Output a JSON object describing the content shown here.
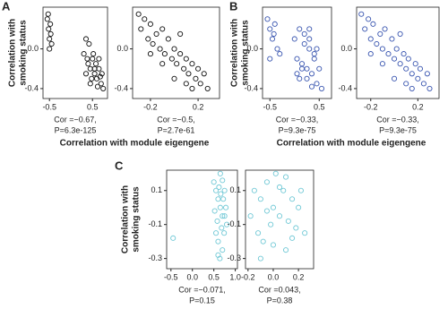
{
  "panel_labels": [
    "A",
    "B",
    "C"
  ],
  "chart_data": [
    {
      "type": "scatter",
      "color": "#111111",
      "y_label": [
        "Correlation with",
        "smoking status"
      ],
      "x_label": "Correlation with module eigengene",
      "annotation": [
        "Cor =−0.67,",
        "P=6.3e-125"
      ],
      "xlim": [
        -0.65,
        0.85
      ],
      "ylim": [
        -0.5,
        0.42
      ],
      "xticks": [
        -0.5,
        0.5
      ],
      "yticks": [
        -0.4,
        {
          "value": 0,
          "label": "0.0"
        }
      ],
      "x": [
        -0.55,
        -0.52,
        -0.5,
        -0.48,
        -0.45,
        -0.53,
        -0.47,
        -0.5,
        0.3,
        0.35,
        0.4,
        0.45,
        0.5,
        0.55,
        0.6,
        0.65,
        0.7,
        0.75,
        0.38,
        0.48,
        0.58,
        0.68,
        0.42,
        0.52,
        0.62,
        0.72,
        0.45,
        0.55,
        0.65,
        0.35
      ],
      "y": [
        0.3,
        0.2,
        0.1,
        0.25,
        0.05,
        0.35,
        0.15,
        0.0,
        -0.05,
        0.1,
        -0.15,
        -0.2,
        -0.1,
        -0.25,
        -0.3,
        -0.2,
        -0.35,
        -0.4,
        -0.1,
        -0.3,
        -0.15,
        -0.28,
        0.05,
        -0.05,
        -0.38,
        -0.25,
        -0.35,
        -0.2,
        -0.1,
        -0.25
      ]
    },
    {
      "type": "scatter",
      "color": "#111111",
      "annotation": [
        "Cor =−0.5,",
        "P=2.7e-61"
      ],
      "xlim": [
        -0.35,
        0.38
      ],
      "ylim": [
        -0.5,
        0.42
      ],
      "xticks": [
        -0.2,
        0.2
      ],
      "yticks": [
        -0.4,
        {
          "value": 0,
          "label": "0.0"
        }
      ],
      "x": [
        -0.3,
        -0.28,
        -0.25,
        -0.22,
        -0.2,
        -0.18,
        -0.15,
        -0.12,
        -0.1,
        -0.08,
        -0.05,
        -0.02,
        0,
        0.02,
        0.05,
        0.08,
        0.1,
        0.12,
        0.15,
        0.18,
        0.2,
        0.22,
        0.25,
        0.28,
        -0.1,
        0.0,
        0.1,
        0.15,
        -0.2,
        0.05
      ],
      "y": [
        0.35,
        0.2,
        0.3,
        0.1,
        0.25,
        0.05,
        0.15,
        0.0,
        0.2,
        -0.05,
        0.1,
        -0.1,
        0.0,
        -0.15,
        -0.05,
        -0.2,
        -0.1,
        -0.25,
        -0.15,
        -0.3,
        -0.2,
        -0.35,
        -0.25,
        -0.4,
        -0.15,
        -0.3,
        -0.35,
        -0.4,
        -0.05,
        0.15
      ]
    },
    {
      "type": "scatter",
      "color": "#3a56b0",
      "y_label": [
        "Correlation with",
        "smoking status"
      ],
      "x_label": "Correlation with module eigengene",
      "annotation": [
        "Cor =−0.33,",
        "P=9.3e-75"
      ],
      "xlim": [
        -0.65,
        0.75
      ],
      "ylim": [
        -0.5,
        0.42
      ],
      "xticks": [
        -0.5,
        0.5
      ],
      "yticks": [
        -0.4,
        {
          "value": 0,
          "label": "0.0"
        }
      ],
      "x": [
        -0.55,
        -0.5,
        -0.45,
        -0.4,
        -0.35,
        -0.5,
        -0.42,
        -0.3,
        0.0,
        0.05,
        0.1,
        0.15,
        0.2,
        0.25,
        0.3,
        0.35,
        0.4,
        0.45,
        0.5,
        0.55,
        0.1,
        0.2,
        0.3,
        0.4,
        0.15,
        0.25,
        0.35,
        0.45,
        0.05,
        0.3
      ],
      "y": [
        0.3,
        0.2,
        0.1,
        0.25,
        0.0,
        -0.1,
        0.15,
        -0.05,
        0.1,
        -0.1,
        0.2,
        -0.2,
        0.05,
        -0.3,
        0.0,
        -0.25,
        -0.1,
        -0.35,
        -0.2,
        -0.4,
        -0.3,
        0.15,
        0.1,
        -0.05,
        -0.15,
        -0.2,
        -0.38,
        0.0,
        -0.25,
        0.2
      ]
    },
    {
      "type": "scatter",
      "color": "#3a56b0",
      "annotation": [
        "Cor =−0.33,",
        "P=9.3e-75"
      ],
      "xlim": [
        -0.32,
        0.38
      ],
      "ylim": [
        -0.5,
        0.42
      ],
      "xticks": [
        -0.2,
        0.2
      ],
      "yticks": [
        -0.4,
        {
          "value": 0,
          "label": "0.0"
        }
      ],
      "x": [
        -0.28,
        -0.25,
        -0.22,
        -0.2,
        -0.18,
        -0.15,
        -0.12,
        -0.1,
        -0.08,
        -0.05,
        -0.02,
        0,
        0.02,
        0.05,
        0.08,
        0.1,
        0.12,
        0.15,
        0.18,
        0.2,
        0.22,
        0.25,
        0.28,
        0.3,
        -0.1,
        0.0,
        0.1,
        0.15,
        -0.2,
        0.05
      ],
      "y": [
        0.35,
        0.2,
        0.3,
        0.1,
        0.25,
        0.05,
        0.15,
        0.0,
        0.2,
        -0.05,
        0.1,
        -0.1,
        0.0,
        -0.15,
        -0.05,
        -0.2,
        -0.1,
        -0.25,
        -0.15,
        -0.3,
        -0.2,
        -0.35,
        -0.25,
        -0.4,
        -0.15,
        -0.3,
        -0.35,
        -0.4,
        -0.05,
        0.15
      ]
    },
    {
      "type": "scatter",
      "color": "#72c9d6",
      "y_label": [
        "Correlation with",
        "smoking status"
      ],
      "x_label": "Correlation with module eigengene",
      "annotation": [
        "Cor =−0.071,",
        "P=0.15"
      ],
      "xlim": [
        -0.6,
        1.05
      ],
      "ylim": [
        -0.36,
        0.22
      ],
      "xticks": [
        -0.5,
        {
          "value": 0,
          "label": "0.0"
        },
        0.5,
        {
          "value": 1,
          "label": "1.0"
        }
      ],
      "yticks": [
        0.1,
        -0.1,
        -0.3
      ],
      "x": [
        0.5,
        0.55,
        0.6,
        0.65,
        0.7,
        0.75,
        0.8,
        0.55,
        0.6,
        0.65,
        0.7,
        0.75,
        0.58,
        0.62,
        0.68,
        0.72,
        0.78,
        0.52,
        0.64,
        0.7,
        -0.45,
        0.6,
        0.66,
        0.74
      ],
      "y": [
        0.15,
        0.1,
        0.05,
        0.2,
        -0.05,
        0.1,
        -0.1,
        -0.15,
        -0.2,
        0.0,
        -0.25,
        -0.05,
        -0.08,
        0.12,
        -0.12,
        0.05,
        0.0,
        -0.02,
        -0.3,
        0.16,
        -0.18,
        -0.28,
        0.08,
        -0.15
      ]
    },
    {
      "type": "scatter",
      "color": "#72c9d6",
      "annotation": [
        "Cor =0.043,",
        "P=0.38"
      ],
      "xlim": [
        -0.22,
        0.32
      ],
      "ylim": [
        -0.36,
        0.22
      ],
      "xticks": [
        -0.2,
        {
          "value": 0,
          "label": "0.0"
        },
        0.2
      ],
      "yticks": [
        0.1,
        -0.1,
        -0.3
      ],
      "x": [
        -0.18,
        -0.15,
        -0.12,
        -0.1,
        -0.08,
        -0.05,
        -0.02,
        0,
        0.02,
        0.05,
        0.08,
        0.1,
        0.12,
        0.15,
        0.18,
        0.2,
        0.22,
        0.25,
        -0.1,
        0.0,
        0.1,
        0.05,
        -0.05,
        0.15
      ],
      "y": [
        -0.05,
        0.1,
        -0.15,
        0.05,
        -0.2,
        0.15,
        -0.1,
        0.0,
        0.2,
        -0.05,
        0.1,
        -0.25,
        -0.08,
        0.05,
        -0.12,
        0.0,
        0.1,
        -0.15,
        -0.3,
        -0.22,
        0.18,
        0.12,
        -0.02,
        -0.18
      ]
    }
  ]
}
